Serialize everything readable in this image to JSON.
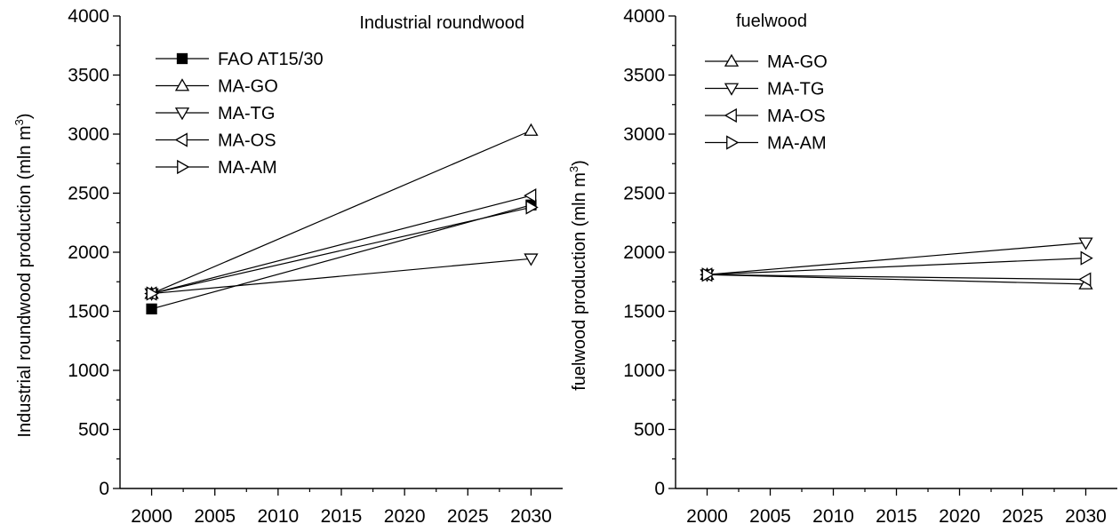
{
  "chart_data": [
    {
      "type": "line",
      "title": "Industrial roundwood",
      "xlabel": "",
      "ylabel": "Industrial roundwood production (mln m",
      "ylabel_sup": "3",
      "ylabel_close": ")",
      "xlim": [
        1997.5,
        2032.5
      ],
      "ylim": [
        0,
        4000
      ],
      "x_ticks": [
        2000,
        2005,
        2010,
        2015,
        2020,
        2025,
        2030
      ],
      "y_ticks": [
        0,
        500,
        1000,
        1500,
        2000,
        2500,
        3000,
        3500,
        4000
      ],
      "legend_position": "top-left",
      "series": [
        {
          "name": "FAO AT15/30",
          "marker": "square-filled",
          "x": [
            2000,
            2030
          ],
          "y": [
            1520,
            2400
          ]
        },
        {
          "name": "MA-GO",
          "marker": "triangle-up",
          "x": [
            2000,
            2030
          ],
          "y": [
            1650,
            3030
          ]
        },
        {
          "name": "MA-TG",
          "marker": "triangle-down",
          "x": [
            2000,
            2030
          ],
          "y": [
            1650,
            1945
          ]
        },
        {
          "name": "MA-OS",
          "marker": "triangle-left",
          "x": [
            2000,
            2030
          ],
          "y": [
            1650,
            2480
          ]
        },
        {
          "name": "MA-AM",
          "marker": "triangle-right",
          "x": [
            2000,
            2030
          ],
          "y": [
            1650,
            2380
          ]
        }
      ]
    },
    {
      "type": "line",
      "title": "fuelwood",
      "xlabel": "",
      "ylabel": "fuelwood production (mln m",
      "ylabel_sup": "3",
      "ylabel_close": ")",
      "xlim": [
        1997.5,
        2032.5
      ],
      "ylim": [
        0,
        4000
      ],
      "x_ticks": [
        2000,
        2005,
        2010,
        2015,
        2020,
        2025,
        2030
      ],
      "y_ticks": [
        0,
        500,
        1000,
        1500,
        2000,
        2500,
        3000,
        3500,
        4000
      ],
      "legend_position": "top-left",
      "series": [
        {
          "name": "MA-GO",
          "marker": "triangle-up",
          "x": [
            2000,
            2030
          ],
          "y": [
            1810,
            1730
          ]
        },
        {
          "name": "MA-TG",
          "marker": "triangle-down",
          "x": [
            2000,
            2030
          ],
          "y": [
            1810,
            2080
          ]
        },
        {
          "name": "MA-OS",
          "marker": "triangle-left",
          "x": [
            2000,
            2030
          ],
          "y": [
            1810,
            1770
          ]
        },
        {
          "name": "MA-AM",
          "marker": "triangle-right",
          "x": [
            2000,
            2030
          ],
          "y": [
            1810,
            1950
          ]
        }
      ]
    }
  ]
}
